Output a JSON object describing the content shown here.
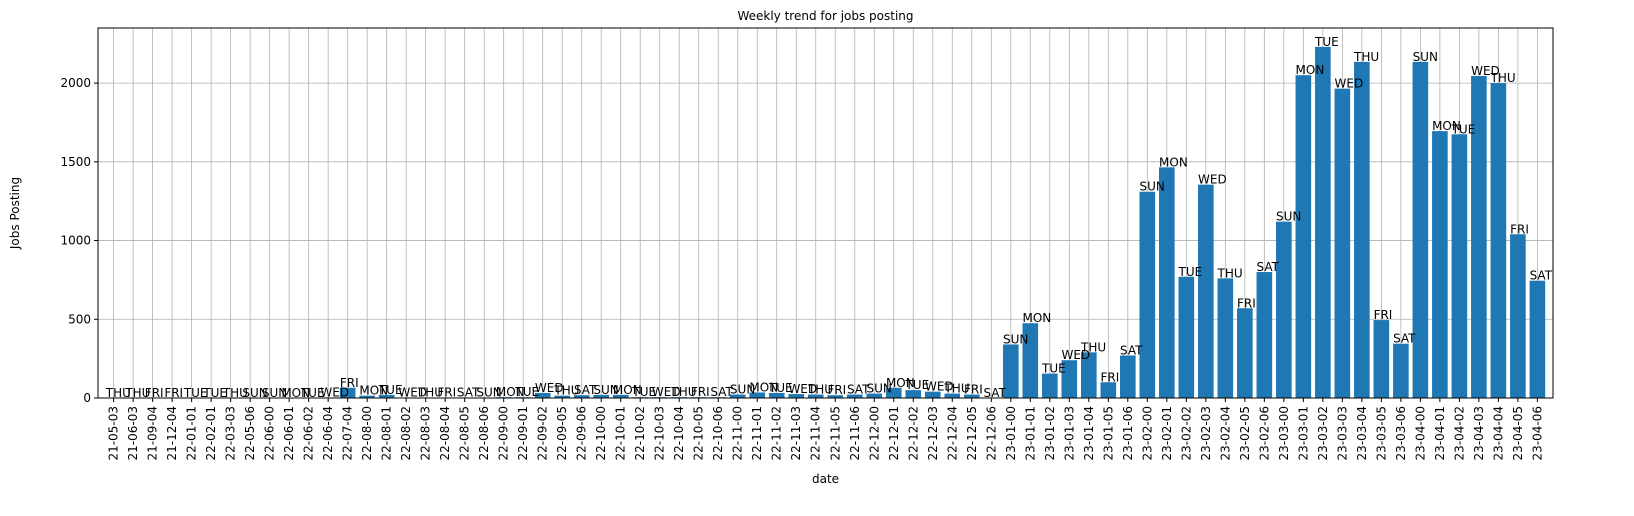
{
  "chart_data": {
    "type": "bar",
    "title": "Weekly trend for jobs posting",
    "xlabel": "date",
    "ylabel": "Jobs Posting",
    "ylim": [
      0,
      2350
    ],
    "yticks": [
      0,
      500,
      1000,
      1500,
      2000
    ],
    "grid": true,
    "bar_color": "#1f77b4",
    "categories": [
      "21-05-03",
      "21-06-03",
      "21-09-04",
      "21-12-04",
      "22-01-01",
      "22-02-01",
      "22-03-03",
      "22-05-06",
      "22-06-00",
      "22-06-01",
      "22-06-02",
      "22-06-04",
      "22-07-04",
      "22-08-00",
      "22-08-01",
      "22-08-02",
      "22-08-03",
      "22-08-04",
      "22-08-05",
      "22-08-06",
      "22-09-00",
      "22-09-01",
      "22-09-02",
      "22-09-05",
      "22-09-06",
      "22-10-00",
      "22-10-01",
      "22-10-02",
      "22-10-03",
      "22-10-04",
      "22-10-05",
      "22-10-06",
      "22-11-00",
      "22-11-01",
      "22-11-02",
      "22-11-03",
      "22-11-04",
      "22-11-05",
      "22-11-06",
      "22-12-00",
      "22-12-01",
      "22-12-02",
      "22-12-03",
      "22-12-04",
      "22-12-05",
      "22-12-06",
      "23-01-00",
      "23-01-01",
      "23-01-02",
      "23-01-03",
      "23-01-04",
      "23-01-05",
      "23-01-06",
      "23-02-00",
      "23-02-01",
      "23-02-02",
      "23-02-03",
      "23-02-04",
      "23-02-05",
      "23-02-06",
      "23-03-00",
      "23-03-01",
      "23-03-02",
      "23-03-03",
      "23-03-04",
      "23-03-05",
      "23-03-06",
      "23-04-00",
      "23-04-01",
      "23-04-02",
      "23-04-03",
      "23-04-04",
      "23-04-05",
      "23-04-06"
    ],
    "values": [
      1,
      1,
      1,
      1,
      1,
      1,
      1,
      1,
      1,
      1,
      1,
      3,
      65,
      15,
      20,
      3,
      3,
      3,
      3,
      3,
      5,
      5,
      32,
      15,
      18,
      20,
      20,
      5,
      5,
      5,
      5,
      5,
      22,
      35,
      32,
      25,
      22,
      18,
      22,
      28,
      65,
      50,
      40,
      28,
      22,
      1,
      340,
      475,
      155,
      240,
      290,
      100,
      270,
      1310,
      1465,
      770,
      1355,
      760,
      570,
      800,
      1120,
      2050,
      2230,
      1965,
      2135,
      495,
      345,
      2135,
      1695,
      1675,
      2045,
      2000,
      1040,
      745
    ],
    "labels": [
      "THU",
      "THU",
      "FRI",
      "FRI",
      "TUE",
      "TUE",
      "THU",
      "SUN",
      "SUN",
      "MON",
      "TUE",
      "WED",
      "FRI",
      "MON",
      "TUE",
      "WED",
      "THU",
      "FRI",
      "SAT",
      "SUN",
      "MON",
      "TUE",
      "WED",
      "THU",
      "SAT",
      "SUN",
      "MON",
      "TUE",
      "WED",
      "THU",
      "FRI",
      "SAT",
      "SUN",
      "MON",
      "TUE",
      "WED",
      "THU",
      "FRI",
      "SAT",
      "SUN",
      "MON",
      "TUE",
      "WED",
      "THU",
      "FRI",
      "SAT",
      "SUN",
      "MON",
      "TUE",
      "WED",
      "THU",
      "FRI",
      "SAT",
      "SUN",
      "MON",
      "TUE",
      "WED",
      "THU",
      "FRI",
      "SAT",
      "SUN",
      "MON",
      "TUE",
      "WED",
      "THU",
      "FRI",
      "SAT",
      "SUN",
      "MON",
      "TUE",
      "WED",
      "THU",
      "FRI",
      "SAT"
    ]
  }
}
